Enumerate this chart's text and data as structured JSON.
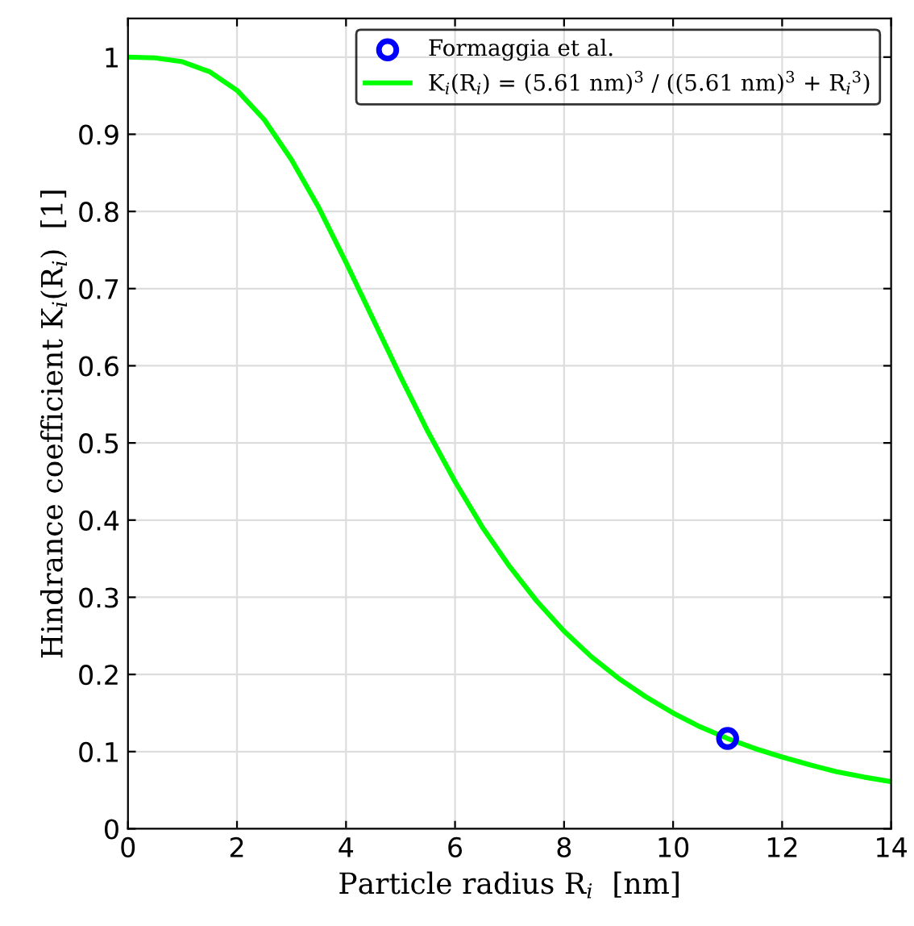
{
  "chart_data": {
    "type": "line",
    "xlabel": "Particle radius R$_{i}$  [nm]",
    "ylabel": "Hindrance coefficient K$_{i}$(R$_{i}$)  [1]",
    "xlim": [
      0,
      14
    ],
    "xticks": [
      0,
      2,
      4,
      6,
      8,
      10,
      12,
      14
    ],
    "ylim": [
      0,
      1.05
    ],
    "yticks": [
      0,
      0.1,
      0.2,
      0.3,
      0.4,
      0.5,
      0.6,
      0.7,
      0.8,
      0.9,
      1
    ],
    "grid": true,
    "legend": "top right",
    "series": [
      {
        "name": "Formaggia et al.",
        "type": "scatter",
        "marker": "circle",
        "color": "#0000ff",
        "x": [
          11
        ],
        "values": [
          0.117
        ]
      },
      {
        "name": "K$_{i}$(R$_{i}$) = (5.61 nm)$^{3}$ / ((5.61 nm)$^{3}$ + R$_{i}$$^{3}$)",
        "type": "line",
        "marker": "none",
        "line_style": "solid",
        "color": "#00ff00",
        "x": [
          0,
          0.5,
          1,
          1.5,
          2,
          2.5,
          3,
          3.5,
          4,
          4.5,
          5,
          5.5,
          6,
          6.5,
          7,
          7.5,
          8,
          8.5,
          9,
          9.5,
          10,
          10.5,
          11,
          11.5,
          12,
          12.5,
          13,
          13.5,
          14
        ],
        "values": [
          1,
          0.999,
          0.994,
          0.981,
          0.957,
          0.919,
          0.867,
          0.805,
          0.734,
          0.66,
          0.586,
          0.515,
          0.45,
          0.391,
          0.34,
          0.295,
          0.256,
          0.223,
          0.195,
          0.171,
          0.15,
          0.132,
          0.117,
          0.104,
          0.093,
          0.083,
          0.074,
          0.067,
          0.061
        ]
      }
    ]
  }
}
